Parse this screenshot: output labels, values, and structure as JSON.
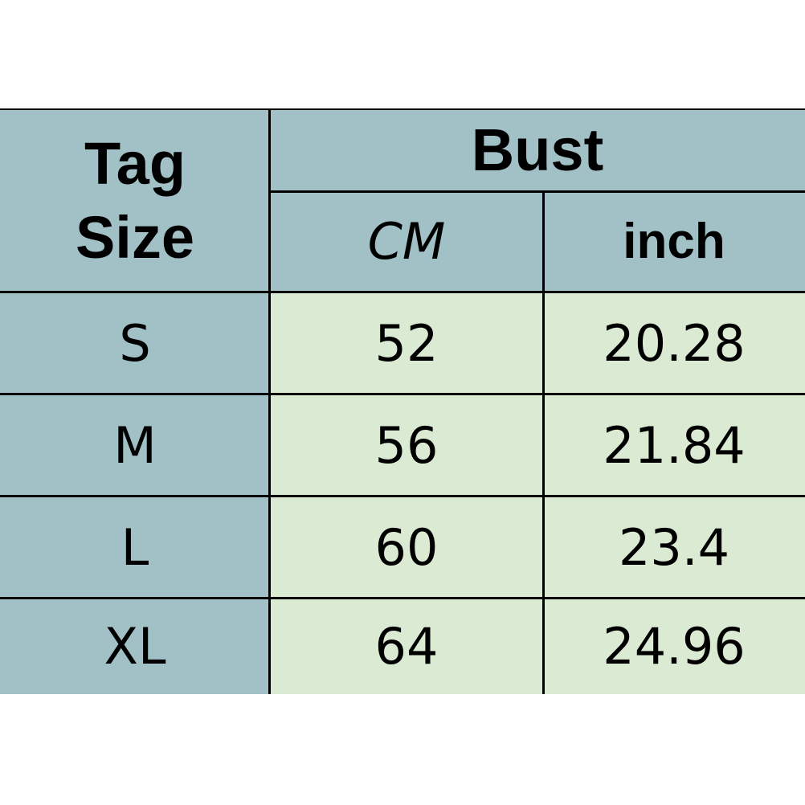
{
  "table": {
    "header": {
      "tag_size_line1": "Tag",
      "tag_size_line2": "Size",
      "group": "Bust",
      "cm": "CM",
      "inch": "inch"
    },
    "rows": [
      {
        "size": "S",
        "cm": "52",
        "inch": "20.28"
      },
      {
        "size": "M",
        "cm": "56",
        "inch": "21.84"
      },
      {
        "size": "L",
        "cm": "60",
        "inch": "23.4"
      },
      {
        "size": "XL",
        "cm": "64",
        "inch": "24.96"
      }
    ],
    "colors": {
      "header_bg": "#a1c1c7",
      "cell_bg": "#dbead3",
      "border": "#000000"
    }
  }
}
